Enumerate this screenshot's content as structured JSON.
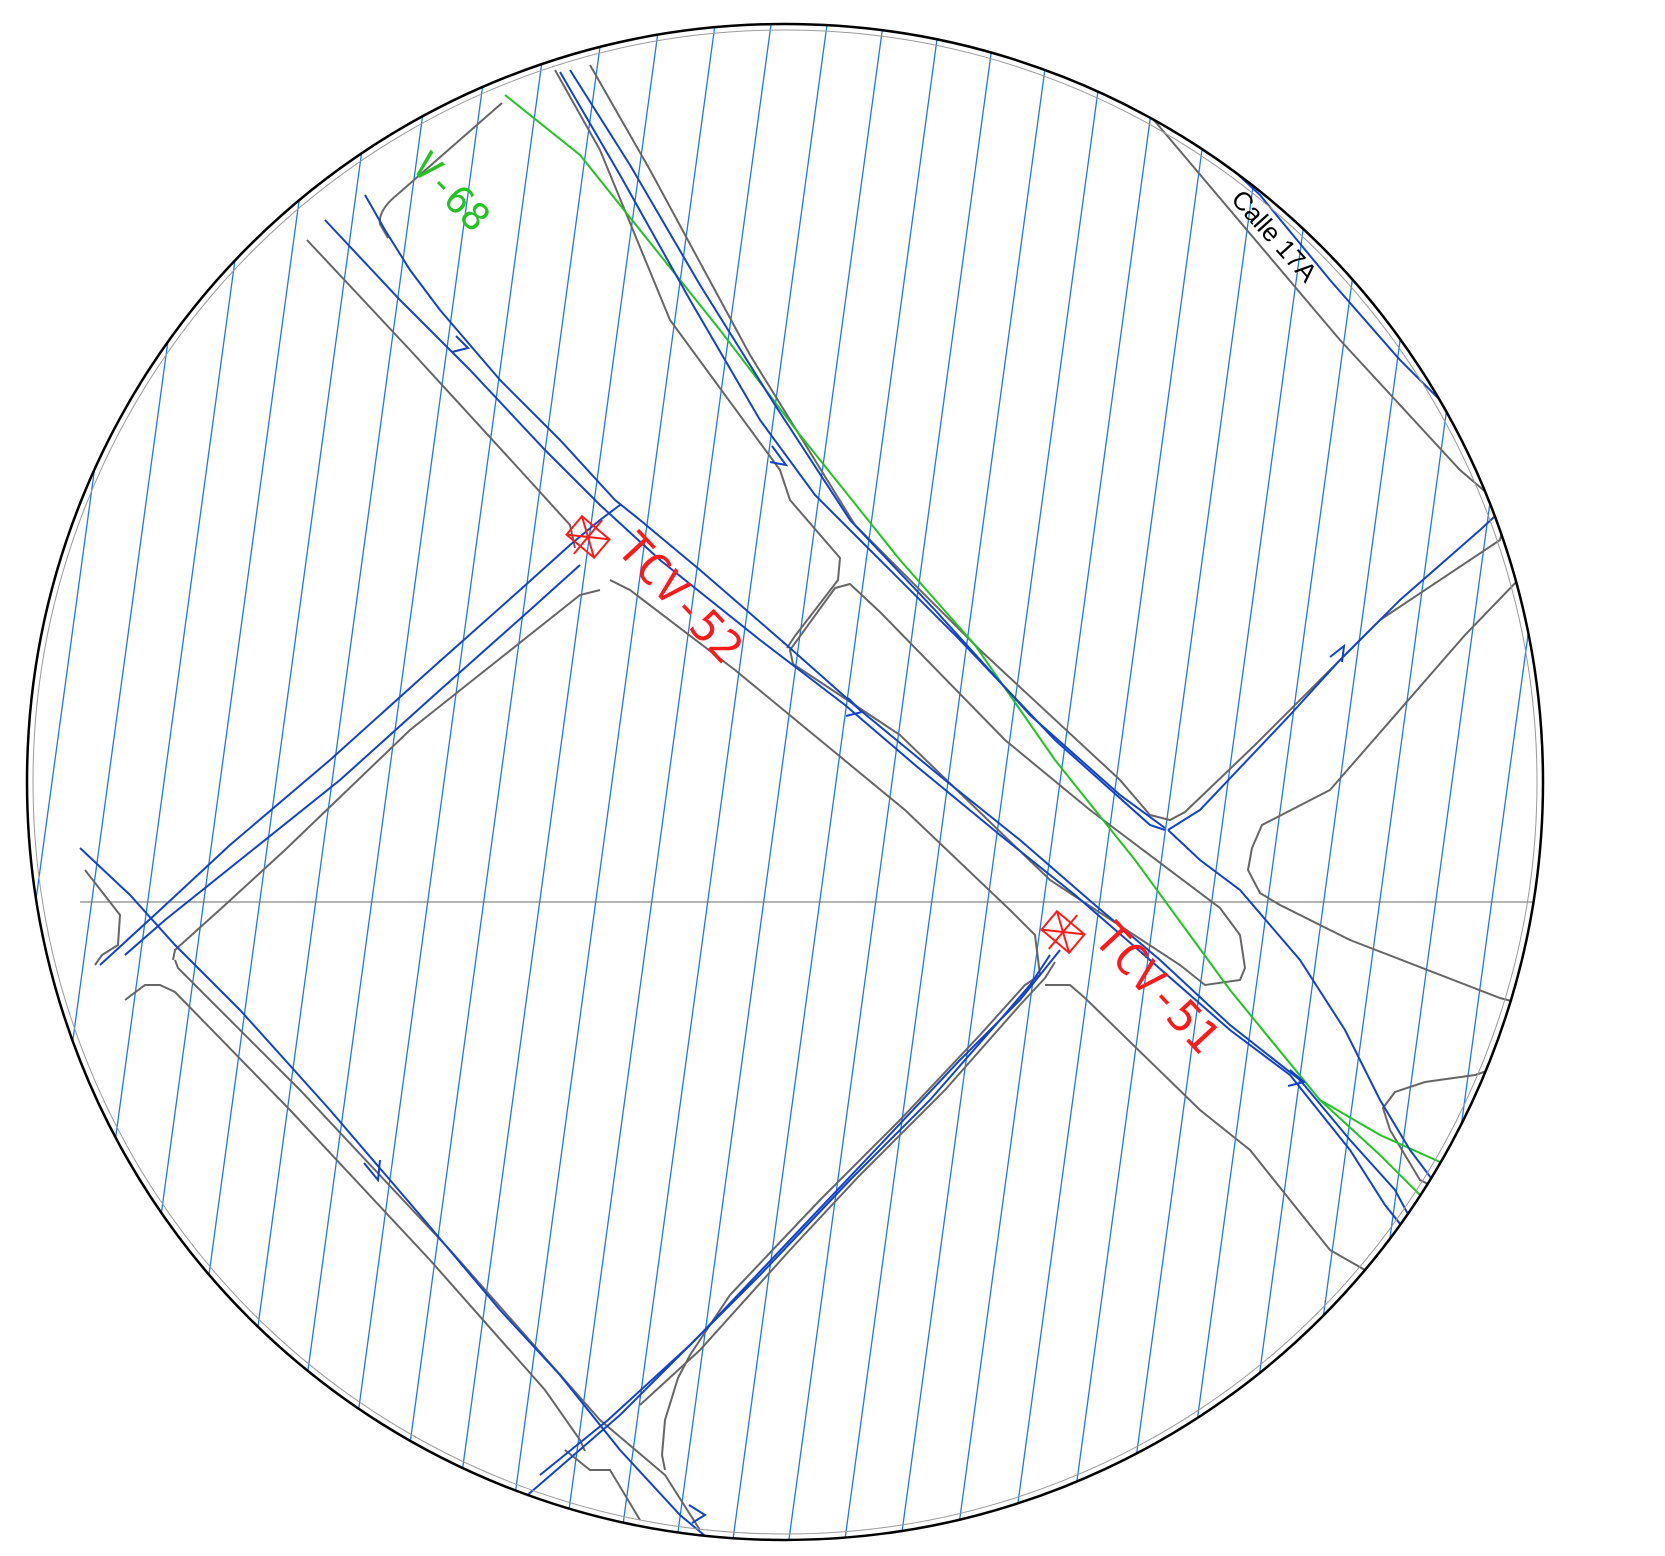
{
  "map": {
    "colors": {
      "background": "#ffffff",
      "frame": "#000000",
      "road_edges": "#666666",
      "hatch": "#1e7ae8",
      "route": "#1343c9",
      "pipeline": "#22c322",
      "valve": "#ff1a1a",
      "street_label": "#000000"
    },
    "labels": {
      "pipeline_label": "V-68",
      "street_label": "Calle 17A",
      "valve_1_label": "TCV-52",
      "valve_2_label": "TCV-51"
    },
    "symbols": {
      "valve_icon": "valve-icon",
      "flow_arrow_icon": "arrow-icon"
    }
  }
}
